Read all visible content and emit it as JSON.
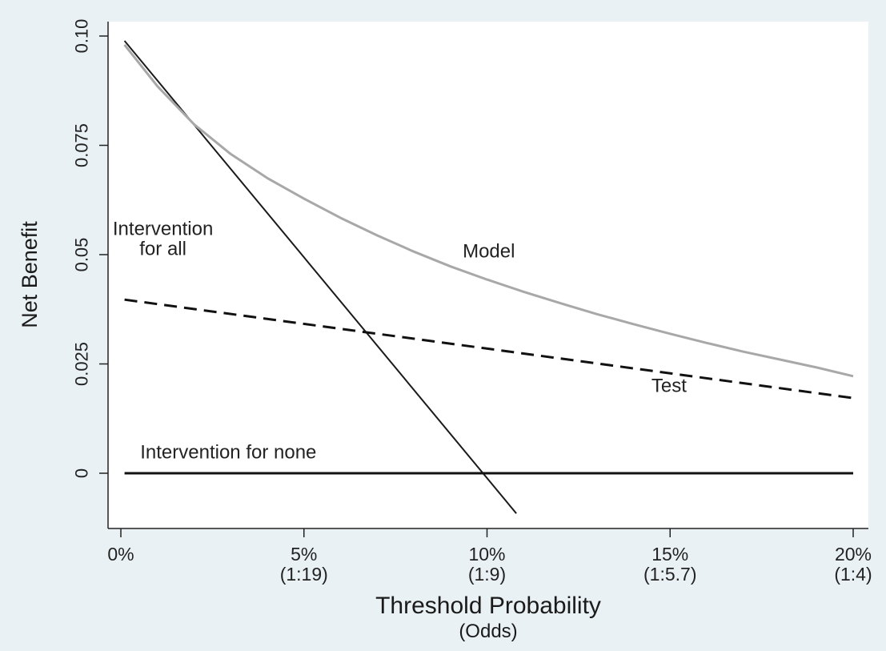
{
  "chart_data": {
    "type": "line",
    "xlabel": "Threshold Probability",
    "xlabel_sub": "(Odds)",
    "ylabel": "Net Benefit",
    "xlim": [
      0,
      0.2
    ],
    "ylim": [
      -0.0125,
      0.1
    ],
    "grid": false,
    "x_ticks": [
      {
        "value": 0,
        "label": "0%",
        "odds": ""
      },
      {
        "value": 0.05,
        "label": "5%",
        "odds": "(1:19)"
      },
      {
        "value": 0.1,
        "label": "10%",
        "odds": "(1:9)"
      },
      {
        "value": 0.15,
        "label": "15%",
        "odds": "(1:5.7)"
      },
      {
        "value": 0.2,
        "label": "20%",
        "odds": "(1:4)"
      }
    ],
    "y_ticks": [
      {
        "value": 0,
        "label": "0"
      },
      {
        "value": 0.025,
        "label": "0.025"
      },
      {
        "value": 0.05,
        "label": "0.05"
      },
      {
        "value": 0.075,
        "label": "0.075"
      },
      {
        "value": 0.1,
        "label": "0.10"
      }
    ],
    "series": [
      {
        "name": "Intervention for all",
        "label_lines": [
          "Intervention",
          "for all"
        ],
        "color": "#1a1a1a",
        "dash": "solid",
        "x": [
          0.001,
          0.108
        ],
        "y": [
          0.0989,
          -0.0092
        ]
      },
      {
        "name": "Model",
        "label_lines": [
          "Model"
        ],
        "color": "#a8a8a8",
        "dash": "solid",
        "x": [
          0.001,
          0.01,
          0.02,
          0.03,
          0.04,
          0.05,
          0.06,
          0.07,
          0.08,
          0.09,
          0.1,
          0.11,
          0.12,
          0.13,
          0.14,
          0.15,
          0.16,
          0.17,
          0.18,
          0.19,
          0.2
        ],
        "y": [
          0.098,
          0.0885,
          0.0798,
          0.073,
          0.0675,
          0.0628,
          0.0584,
          0.0544,
          0.0507,
          0.0473,
          0.0443,
          0.0415,
          0.0389,
          0.0364,
          0.0341,
          0.0319,
          0.0298,
          0.0278,
          0.026,
          0.0242,
          0.0222
        ]
      },
      {
        "name": "Test",
        "label_lines": [
          "Test"
        ],
        "color": "#111111",
        "dash": "dashed",
        "x": [
          0.001,
          0.2
        ],
        "y": [
          0.0397,
          0.0172
        ]
      },
      {
        "name": "Intervention for none",
        "label_lines": [
          "Intervention for none"
        ],
        "color": "#111111",
        "dash": "solid",
        "x": [
          0.001,
          0.2
        ],
        "y": [
          0,
          0
        ]
      }
    ]
  }
}
